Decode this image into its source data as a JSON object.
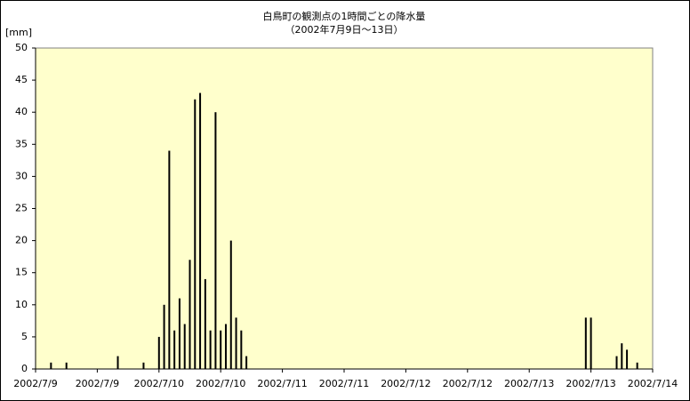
{
  "chart_data": {
    "type": "bar",
    "title": "白鳥町の観測点の1時間ごとの降水量",
    "subtitle": "（2002年7月9日～13日）",
    "y_label": "[mm]",
    "x": [
      3,
      6,
      16,
      21,
      24,
      25,
      26,
      27,
      28,
      29,
      30,
      31,
      32,
      33,
      34,
      35,
      36,
      37,
      38,
      39,
      40,
      41,
      107,
      108,
      113,
      114,
      115,
      117
    ],
    "values": [
      1,
      1,
      2,
      1,
      5,
      10,
      34,
      6,
      11,
      7,
      17,
      42,
      43,
      14,
      6,
      40,
      6,
      7,
      20,
      8,
      6,
      2,
      8,
      8,
      2,
      4,
      3,
      1
    ],
    "color": "#000000",
    "xlim": [
      0,
      120
    ],
    "xticks": [
      {
        "value": 0,
        "label": "2002/7/9"
      },
      {
        "value": 12,
        "label": "2002/7/9"
      },
      {
        "value": 24,
        "label": "2002/7/10"
      },
      {
        "value": 36,
        "label": "2002/7/10"
      },
      {
        "value": 48,
        "label": "2002/7/11"
      },
      {
        "value": 60,
        "label": "2002/7/11"
      },
      {
        "value": 72,
        "label": "2002/7/12"
      },
      {
        "value": 84,
        "label": "2002/7/12"
      },
      {
        "value": 96,
        "label": "2002/7/13"
      },
      {
        "value": 108,
        "label": "2002/7/13"
      },
      {
        "value": 120,
        "label": "2002/7/14"
      }
    ],
    "ylim": [
      0,
      50
    ],
    "yticks": [
      0,
      5,
      10,
      15,
      20,
      25,
      30,
      35,
      40,
      45,
      50
    ],
    "grid": false
  }
}
